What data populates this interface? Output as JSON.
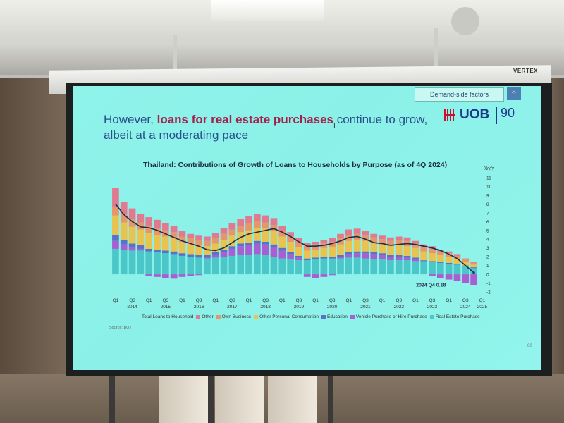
{
  "projector": {
    "brand": "VERTEX"
  },
  "slide": {
    "tag": "Demand-side factors",
    "title_part1": "However, ",
    "title_highlight": "loans for real estate purchases",
    "title_part2": " continue to grow,",
    "title_line2": "albeit at a moderating pace",
    "logo_text": "UOB",
    "logo_number": "90",
    "chart_title": "Thailand: Contributions of Growth of Loans to Households by Purpose (as of 4Q 2024)",
    "unit": "%y/y",
    "annotation": "2024 Q4 0.18",
    "source": "Source: BOT",
    "page_number": "60",
    "legend": [
      {
        "label": "Total Loans to Household",
        "color": "#1f2b4a",
        "kind": "line"
      },
      {
        "label": "Other",
        "color": "#e17a90",
        "kind": "box"
      },
      {
        "label": "Own Business",
        "color": "#e8956b",
        "kind": "box"
      },
      {
        "label": "Other Personal Consumption",
        "color": "#e9c24f",
        "kind": "box"
      },
      {
        "label": "Education",
        "color": "#5673c8",
        "kind": "box"
      },
      {
        "label": "Vehicle Purchase or Hire Purchase",
        "color": "#a85fd1",
        "kind": "box"
      },
      {
        "label": "Real Estate Purchase",
        "color": "#4cc7c9",
        "kind": "box"
      }
    ]
  },
  "chart_data": {
    "type": "bar",
    "title": "Thailand: Contributions of Growth of Loans to Households by Purpose (as of 4Q 2024)",
    "ylabel": "%y/y",
    "ylim": [
      -2,
      11
    ],
    "yticks": [
      -2,
      -1,
      0,
      1,
      2,
      3,
      4,
      5,
      6,
      7,
      8,
      9,
      10,
      11
    ],
    "x_tick_labels": [
      {
        "q": "Q1",
        "y": ""
      },
      {
        "q": "Q3",
        "y": "2014"
      },
      {
        "q": "Q1",
        "y": ""
      },
      {
        "q": "Q3",
        "y": "2015"
      },
      {
        "q": "Q1",
        "y": ""
      },
      {
        "q": "Q3",
        "y": "2016"
      },
      {
        "q": "Q1",
        "y": ""
      },
      {
        "q": "Q3",
        "y": "2017"
      },
      {
        "q": "Q1",
        "y": ""
      },
      {
        "q": "Q3",
        "y": "2018"
      },
      {
        "q": "Q1",
        "y": ""
      },
      {
        "q": "Q3",
        "y": "2019"
      },
      {
        "q": "Q1",
        "y": ""
      },
      {
        "q": "Q3",
        "y": "2020"
      },
      {
        "q": "Q1",
        "y": ""
      },
      {
        "q": "Q3",
        "y": "2021"
      },
      {
        "q": "Q1",
        "y": ""
      },
      {
        "q": "Q3",
        "y": "2022"
      },
      {
        "q": "Q1",
        "y": ""
      },
      {
        "q": "Q3",
        "y": "2023"
      },
      {
        "q": "Q1",
        "y": ""
      },
      {
        "q": "Q3",
        "y": "2024"
      },
      {
        "q": "Q1",
        "y": "2025"
      }
    ],
    "series": [
      {
        "name": "Real Estate Purchase",
        "color": "#4cc7c9",
        "values": [
          2.9,
          2.8,
          2.7,
          2.7,
          2.6,
          2.5,
          2.4,
          2.3,
          2.1,
          2.0,
          1.9,
          1.8,
          1.9,
          2.0,
          2.1,
          2.2,
          2.2,
          2.3,
          2.2,
          2.0,
          1.8,
          1.7,
          1.6,
          1.6,
          1.7,
          1.8,
          1.8,
          1.8,
          1.9,
          1.9,
          1.8,
          1.7,
          1.7,
          1.6,
          1.6,
          1.6,
          1.5,
          1.5,
          1.4,
          1.3,
          1.2,
          1.1,
          0.9,
          0.7
        ]
      },
      {
        "name": "Vehicle Purchase or Hire Purchase",
        "color": "#a85fd1",
        "values": [
          0.9,
          0.6,
          0.4,
          0.2,
          -0.2,
          -0.3,
          -0.4,
          -0.5,
          -0.3,
          -0.2,
          -0.1,
          0.1,
          0.3,
          0.5,
          0.8,
          1.0,
          1.1,
          1.2,
          1.2,
          1.1,
          0.9,
          0.6,
          0.3,
          -0.3,
          -0.4,
          -0.3,
          -0.1,
          0.2,
          0.4,
          0.5,
          0.6,
          0.6,
          0.5,
          0.4,
          0.4,
          0.3,
          0.2,
          0.0,
          -0.2,
          -0.4,
          -0.6,
          -0.8,
          -1.0,
          -1.2
        ]
      },
      {
        "name": "Education",
        "color": "#5673c8",
        "values": [
          0.7,
          0.5,
          0.4,
          0.4,
          0.3,
          0.3,
          0.3,
          0.3,
          0.3,
          0.3,
          0.3,
          0.3,
          0.3,
          0.3,
          0.3,
          0.3,
          0.3,
          0.3,
          0.3,
          0.3,
          0.3,
          0.2,
          0.2,
          0.2,
          0.2,
          0.2,
          0.2,
          0.2,
          0.2,
          0.2,
          0.2,
          0.2,
          0.2,
          0.2,
          0.2,
          0.2,
          0.2,
          0.1,
          0.1,
          0.1,
          0.1,
          0.1,
          0.1,
          0.1
        ]
      },
      {
        "name": "Other Personal Consumption",
        "color": "#e9c24f",
        "values": [
          2.2,
          2.0,
          1.9,
          1.8,
          1.8,
          1.7,
          1.6,
          1.5,
          1.3,
          1.2,
          1.1,
          1.0,
          1.0,
          1.1,
          1.2,
          1.3,
          1.4,
          1.5,
          1.5,
          1.5,
          1.3,
          1.2,
          1.0,
          0.9,
          0.9,
          1.0,
          1.1,
          1.2,
          1.3,
          1.3,
          1.2,
          1.1,
          1.0,
          1.0,
          1.1,
          1.1,
          1.1,
          1.0,
          0.9,
          0.8,
          0.7,
          0.6,
          0.4,
          0.3
        ]
      },
      {
        "name": "Own Business",
        "color": "#e8956b",
        "values": [
          1.0,
          0.9,
          0.9,
          0.8,
          0.8,
          0.8,
          0.7,
          0.7,
          0.6,
          0.6,
          0.6,
          0.6,
          0.6,
          0.7,
          0.7,
          0.7,
          0.8,
          0.8,
          0.7,
          0.7,
          0.6,
          0.6,
          0.6,
          0.6,
          0.6,
          0.6,
          0.6,
          0.7,
          0.7,
          0.7,
          0.6,
          0.6,
          0.6,
          0.6,
          0.6,
          0.6,
          0.5,
          0.5,
          0.5,
          0.4,
          0.4,
          0.3,
          0.3,
          0.2
        ]
      },
      {
        "name": "Other",
        "color": "#e17a90",
        "values": [
          2.1,
          1.4,
          1.2,
          1.0,
          1.0,
          0.9,
          0.8,
          0.7,
          0.6,
          0.5,
          0.5,
          0.5,
          0.6,
          0.7,
          0.7,
          0.8,
          0.8,
          0.8,
          0.8,
          0.8,
          0.6,
          0.5,
          0.4,
          0.3,
          0.3,
          0.3,
          0.4,
          0.5,
          0.6,
          0.6,
          0.5,
          0.4,
          0.4,
          0.4,
          0.4,
          0.4,
          0.3,
          0.3,
          0.3,
          0.2,
          0.2,
          0.2,
          0.1,
          0.1
        ]
      },
      {
        "name": "Total Loans to Household",
        "color": "#1f2b4a",
        "kind": "line",
        "values": [
          8.0,
          6.8,
          6.0,
          5.4,
          5.3,
          5.0,
          4.6,
          4.2,
          3.8,
          3.5,
          3.2,
          2.8,
          2.7,
          3.0,
          3.6,
          4.2,
          4.6,
          4.8,
          5.0,
          5.2,
          4.8,
          4.3,
          3.7,
          3.2,
          3.2,
          3.3,
          3.5,
          3.8,
          4.2,
          4.3,
          4.0,
          3.6,
          3.5,
          3.3,
          3.4,
          3.5,
          3.4,
          3.2,
          3.0,
          2.7,
          2.3,
          1.8,
          1.0,
          0.18
        ]
      }
    ]
  }
}
